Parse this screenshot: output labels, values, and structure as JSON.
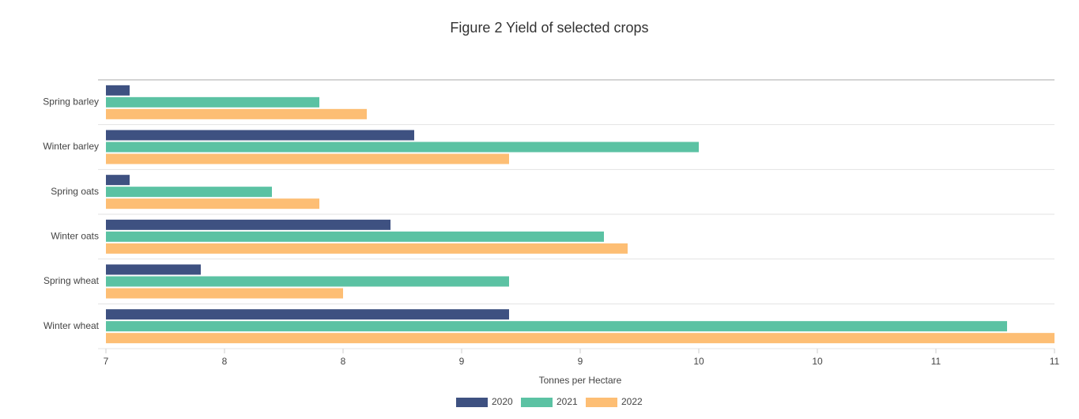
{
  "chart_data": {
    "type": "hbar",
    "title": "Figure 2 Yield of selected crops",
    "x_label": "Tonnes per Hectare",
    "categories": [
      "Spring barley",
      "Winter barley",
      "Spring oats",
      "Winter oats",
      "Spring wheat",
      "Winter wheat"
    ],
    "series": [
      {
        "name": "2020",
        "color": "#3e5181",
        "values": [
          7.1,
          8.3,
          7.1,
          8.2,
          7.4,
          8.7
        ]
      },
      {
        "name": "2021",
        "color": "#5bc2a3",
        "values": [
          7.9,
          9.5,
          7.7,
          9.1,
          8.7,
          10.8
        ]
      },
      {
        "name": "2022",
        "color": "#fdbe74",
        "values": [
          8.1,
          8.7,
          7.9,
          9.2,
          8.0,
          11.0
        ]
      }
    ],
    "xlim": [
      7,
      11
    ],
    "xticks": [
      7,
      {
        "value": 7.5,
        "label": "8"
      },
      8,
      {
        "value": 8.5,
        "label": "9"
      },
      9,
      {
        "value": 9.5,
        "label": "10"
      },
      10,
      {
        "value": 10.5,
        "label": "11"
      },
      11
    ],
    "legend": "bottom"
  }
}
